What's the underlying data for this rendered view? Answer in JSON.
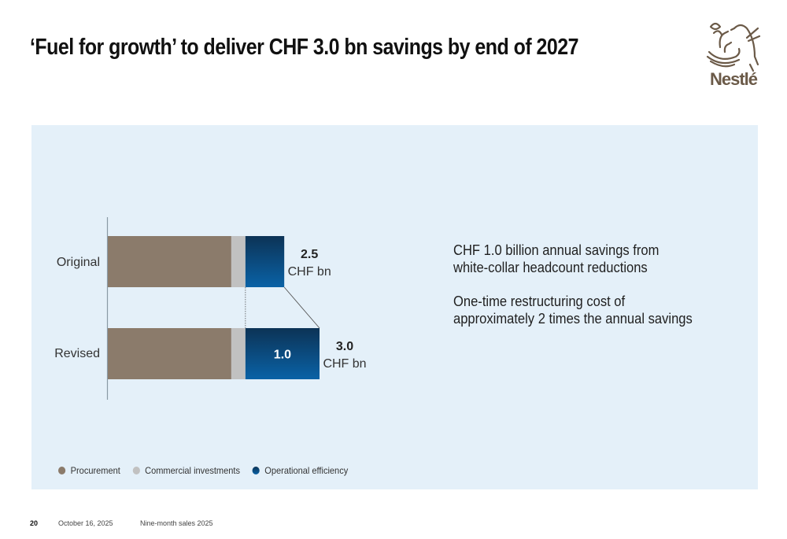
{
  "title": "‘Fuel for growth’ to deliver CHF 3.0 bn savings by end of 2027",
  "logo": {
    "name": "Nestlé",
    "wordmark": "Nestlé",
    "color": "#6b5a48"
  },
  "colors": {
    "panel_bg": "#e4f0f9",
    "procurement": "#8b7b6b",
    "commercial": "#c1c1c1",
    "operational_top": "#0c3356",
    "operational_bottom": "#0a62a6"
  },
  "chart_data": {
    "type": "bar",
    "orientation": "horizontal",
    "stacked": true,
    "title": "",
    "xlabel": "",
    "ylabel": "",
    "unit": "CHF bn",
    "xlim": [
      0,
      3.0
    ],
    "grid": false,
    "categories": [
      "Original",
      "Revised"
    ],
    "series": [
      {
        "name": "Procurement",
        "values": [
          1.75,
          1.75
        ]
      },
      {
        "name": "Commercial investments",
        "values": [
          0.2,
          0.2
        ]
      },
      {
        "name": "Operational efficiency",
        "values": [
          0.55,
          1.05
        ]
      }
    ],
    "totals": [
      {
        "value": "2.5",
        "unit": "CHF bn"
      },
      {
        "value": "3.0",
        "unit": "CHF bn"
      }
    ],
    "segment_labels": [
      "",
      "1.0"
    ],
    "legend": {
      "position": "bottom-left",
      "entries": [
        "Procurement",
        "Commercial investments",
        "Operational efficiency"
      ]
    }
  },
  "notes": [
    {
      "line1": "CHF 1.0 billion annual savings from",
      "line2": "white-collar headcount reductions"
    },
    {
      "line1": "One-time restructuring cost of",
      "line2": "approximately 2 times the annual savings"
    }
  ],
  "footer": {
    "page_number": "20",
    "date": "October 16, 2025",
    "deck": "Nine-month sales 2025"
  }
}
